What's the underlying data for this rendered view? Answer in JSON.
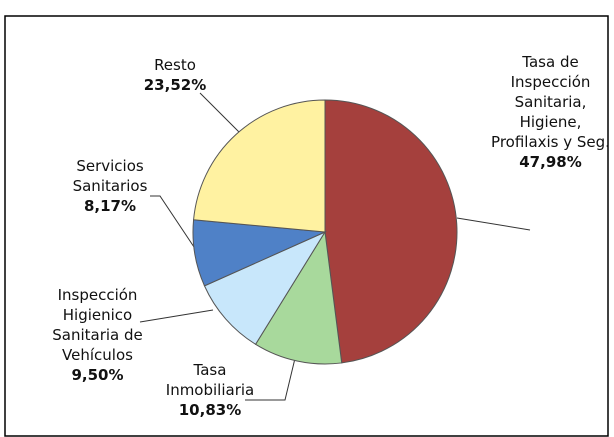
{
  "chart_data": {
    "type": "pie",
    "categories": [
      "Tasa de Inspección Sanitaria, Higiene, Profilaxis y Seg.",
      "Tasa Inmobiliaria",
      "Inspección Higienico Sanitaria de Vehículos",
      "Servicios Sanitarios",
      "Resto"
    ],
    "values": [
      47.98,
      10.83,
      9.5,
      8.17,
      23.52
    ],
    "value_labels": [
      "47,98%",
      "10,83%",
      "9,50%",
      "8,17%",
      "23,52%"
    ],
    "colors": [
      "#a5403d",
      "#a8d99c",
      "#c8e7fb",
      "#4f81c7",
      "#fff2a1"
    ]
  }
}
